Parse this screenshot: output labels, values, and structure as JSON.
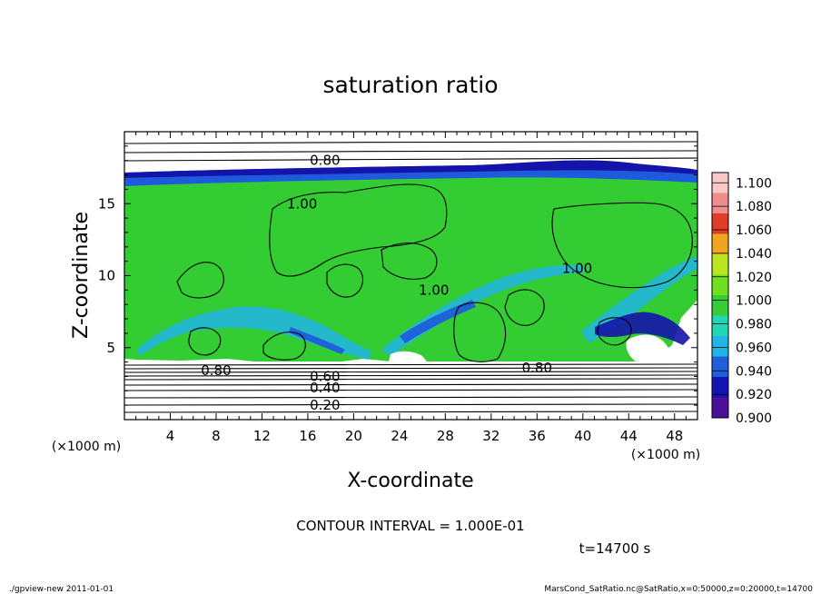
{
  "chart_data": {
    "type": "heatmap",
    "title": "saturation ratio",
    "xlabel": "X-coordinate",
    "ylabel": "Z-coordinate",
    "x_unit_label": "(×1000 m)",
    "y_unit_label": "(×1000 m)",
    "xlim": [
      0,
      50
    ],
    "ylim": [
      0,
      20
    ],
    "x_ticks": [
      4,
      8,
      12,
      16,
      20,
      24,
      28,
      32,
      36,
      40,
      44,
      48
    ],
    "y_ticks": [
      5,
      10,
      15
    ],
    "colorbar": {
      "levels": [
        0.9,
        0.92,
        0.94,
        0.96,
        0.98,
        1.0,
        1.02,
        1.04,
        1.06,
        1.08,
        1.1
      ],
      "labels": [
        "0.900",
        "0.920",
        "0.940",
        "0.960",
        "0.980",
        "1.000",
        "1.020",
        "1.040",
        "1.060",
        "1.080",
        "1.100"
      ],
      "colors": [
        "#4b0f9a",
        "#1414b4",
        "#1f5fdc",
        "#22b4e6",
        "#22d8b4",
        "#37cd37",
        "#6ee01e",
        "#b9e61e",
        "#f0a51e",
        "#e13c28",
        "#f08c8c",
        "#fac8c8"
      ]
    },
    "contour_labels": [
      {
        "text": "0.80",
        "x": 17.5,
        "z": 18.0
      },
      {
        "text": "1.00",
        "x": 15.5,
        "z": 15.0
      },
      {
        "text": "1.00",
        "x": 39.5,
        "z": 10.5
      },
      {
        "text": "1.00",
        "x": 27.0,
        "z": 9.0
      },
      {
        "text": "0.80",
        "x": 8.0,
        "z": 3.4
      },
      {
        "text": "0.80",
        "x": 36.0,
        "z": 3.6
      },
      {
        "text": "0.60",
        "x": 17.5,
        "z": 3.0
      },
      {
        "text": "0.40",
        "x": 17.5,
        "z": 2.2
      },
      {
        "text": "0.20",
        "x": 17.5,
        "z": 1.0
      }
    ],
    "grid": false,
    "legend": "colorbar-right"
  },
  "annotations": {
    "contour_interval": "CONTOUR INTERVAL = 1.000E-01",
    "time": "t=14700 s",
    "footer_left": "./gpview-new  2011-01-01",
    "footer_right": "MarsCond_SatRatio.nc@SatRatio,x=0:50000,z=0:20000,t=14700"
  }
}
